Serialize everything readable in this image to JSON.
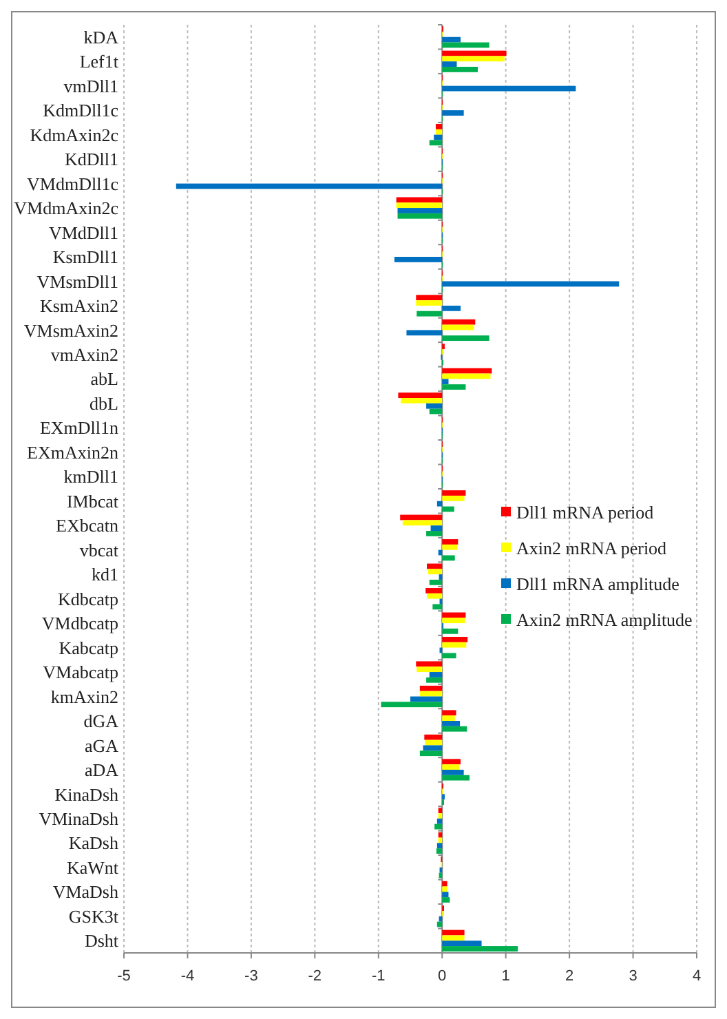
{
  "chart_data": {
    "type": "bar",
    "orientation": "horizontal",
    "categories": [
      "kDA",
      "Lef1t",
      "vmDll1",
      "KdmDll1c",
      "KdmAxin2c",
      "KdDll1",
      "VMdmDll1c",
      "VMdmAxin2c",
      "VMdDll1",
      "KsmDll1",
      "VMsmDll1",
      "KsmAxin2",
      "VMsmAxin2",
      "vmAxin2",
      "abL",
      "dbL",
      "EXmDll1n",
      "EXmAxin2n",
      "kmDll1",
      "IMbcat",
      "EXbcatn",
      "vbcat",
      "kd1",
      "Kdbcatp",
      "VMdbcatp",
      "Kabcatp",
      "VMabcatp",
      "kmAxin2",
      "dGA",
      "aGA",
      "aDA",
      "KinaDsh",
      "VMinaDsh",
      "KaDsh",
      "KaWnt",
      "VMaDsh",
      "GSK3t",
      "Dsht"
    ],
    "series": [
      {
        "name": "Dll1 mRNA period",
        "color": "#ff0000",
        "values": [
          0.02,
          1.01,
          0.01,
          0.01,
          -0.1,
          0.01,
          0.01,
          -0.72,
          0.01,
          0.01,
          0.01,
          -0.41,
          0.52,
          0.04,
          0.78,
          -0.69,
          0.01,
          0.01,
          0.01,
          0.37,
          -0.66,
          0.25,
          -0.24,
          -0.26,
          0.37,
          0.4,
          -0.41,
          -0.35,
          0.22,
          -0.28,
          0.29,
          0.02,
          -0.06,
          -0.06,
          -0.02,
          0.08,
          0.03,
          0.35
        ]
      },
      {
        "name": "Axin2 mRNA period",
        "color": "#ffff00",
        "values": [
          0.01,
          0.98,
          0.01,
          0.01,
          -0.1,
          0.01,
          0.01,
          -0.72,
          0.01,
          0.01,
          0.01,
          -0.41,
          0.5,
          0.03,
          0.76,
          -0.65,
          0.01,
          0.01,
          0.01,
          0.35,
          -0.62,
          0.24,
          -0.22,
          -0.24,
          0.36,
          0.38,
          -0.4,
          -0.35,
          0.2,
          -0.27,
          0.27,
          0.02,
          -0.06,
          -0.06,
          -0.02,
          0.08,
          0.03,
          0.35
        ]
      },
      {
        "name": "Dll1 mRNA amplitude",
        "color": "#0070c0",
        "values": [
          0.29,
          0.23,
          2.1,
          0.34,
          -0.13,
          0.01,
          -4.18,
          -0.7,
          0.01,
          -0.75,
          2.78,
          0.29,
          -0.56,
          -0.02,
          0.1,
          -0.25,
          0.01,
          0.01,
          0.01,
          -0.08,
          -0.18,
          -0.06,
          -0.05,
          -0.04,
          0.02,
          -0.04,
          -0.2,
          -0.5,
          0.28,
          -0.3,
          0.34,
          0.04,
          -0.08,
          -0.08,
          -0.04,
          0.1,
          -0.05,
          0.62
        ]
      },
      {
        "name": "Axin2 mRNA amplitude",
        "color": "#00b050",
        "values": [
          0.74,
          0.56,
          0.01,
          0.01,
          -0.2,
          0.01,
          0.01,
          -0.7,
          0.01,
          0.01,
          0.01,
          -0.4,
          0.74,
          0.02,
          0.37,
          -0.2,
          0.01,
          0.01,
          0.01,
          0.19,
          -0.25,
          0.2,
          -0.2,
          -0.15,
          0.25,
          0.22,
          -0.25,
          -0.96,
          0.39,
          -0.35,
          0.43,
          0.03,
          -0.12,
          -0.09,
          -0.05,
          0.12,
          -0.08,
          1.19
        ]
      }
    ],
    "xlim": [
      -5,
      4
    ],
    "xticks": [
      -5,
      -4,
      -3,
      -2,
      -1,
      0,
      1,
      2,
      3,
      4
    ],
    "grid": "x",
    "legend": "right"
  }
}
